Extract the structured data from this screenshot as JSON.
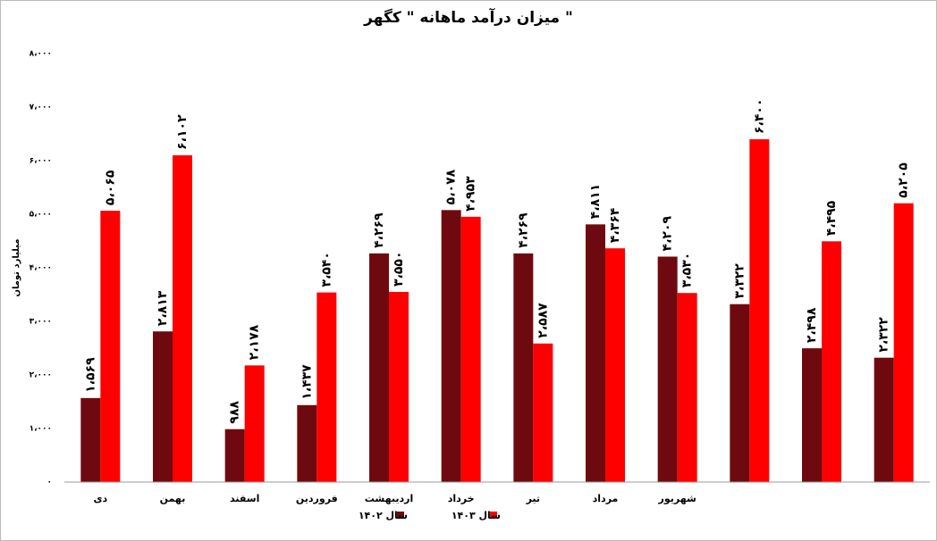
{
  "chart_data": {
    "type": "bar",
    "title": "میزان درآمد ماهانه \" کگهر \"",
    "y_label": "میلیارد تومان",
    "categories": [
      "دی",
      "بهمن",
      "اسفند",
      "فروردین",
      "اردیبهشت",
      "خرداد",
      "تیر",
      "مرداد",
      "شهریور",
      null,
      null,
      null
    ],
    "series": [
      {
        "name": "سال ۱۴۰۲",
        "color": "#6e0a0f",
        "values": [
          1569,
          2813,
          988,
          1437,
          4269,
          5078,
          4269,
          4811,
          4209,
          3322,
          2498,
          2322
        ],
        "value_labels": [
          "۱،۵۶۹",
          "۲،۸۱۳",
          "۹۸۸",
          "۱،۴۳۷",
          "۴،۲۶۹",
          "۵،۰۷۸",
          "۴،۲۶۹",
          "۴،۸۱۱",
          "۴،۲۰۹",
          "۳،۳۲۲",
          "۲،۴۹۸",
          "۲،۳۲۲"
        ]
      },
      {
        "name": "سال ۱۴۰۳",
        "color": "#ff0000",
        "values": [
          5065,
          6102,
          2178,
          3540,
          3550,
          4953,
          2587,
          4364,
          3530,
          6400,
          4495,
          5205
        ],
        "value_labels": [
          "۵،۰۶۵",
          "۶،۱۰۲",
          "۲،۱۷۸",
          "۳،۵۴۰",
          "۳،۵۵۰",
          "۴،۹۵۳",
          "۲،۵۸۷",
          "۴،۳۶۴",
          "۳،۵۳۰",
          "۶،۴۰۰",
          "۴،۴۹۵",
          "۵،۲۰۵"
        ]
      }
    ],
    "ylim": [
      0,
      8000
    ],
    "yticks": [
      {
        "value": 0,
        "label": "۰"
      },
      {
        "value": 1000,
        "label": "۱،۰۰۰"
      },
      {
        "value": 2000,
        "label": "۲،۰۰۰"
      },
      {
        "value": 3000,
        "label": "۳،۰۰۰"
      },
      {
        "value": 4000,
        "label": "۴،۰۰۰"
      },
      {
        "value": 5000,
        "label": "۵،۰۰۰"
      },
      {
        "value": 6000,
        "label": "۶،۰۰۰"
      },
      {
        "value": 7000,
        "label": "۷،۰۰۰"
      },
      {
        "value": 8000,
        "label": "۸،۰۰۰"
      }
    ],
    "grid": false,
    "legend": "bottom"
  }
}
